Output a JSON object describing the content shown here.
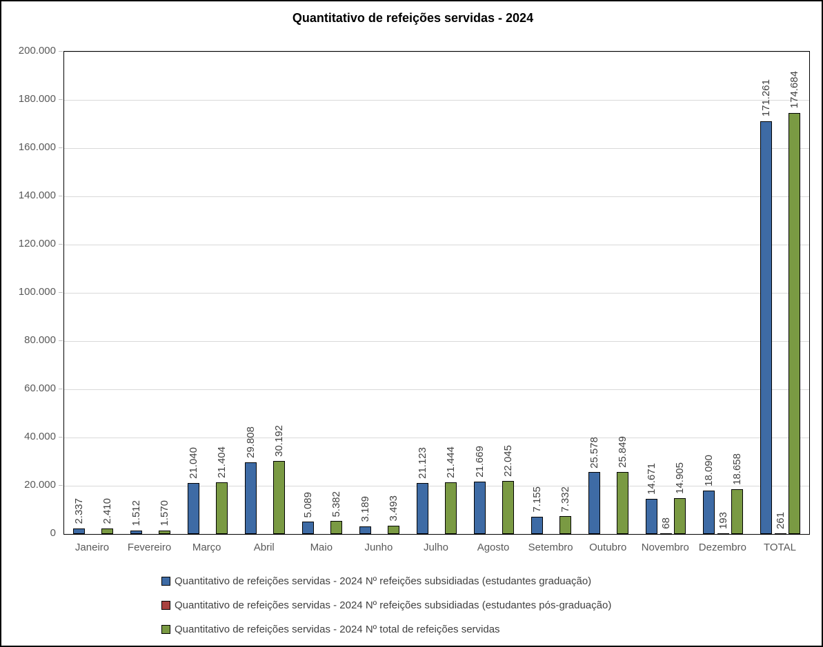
{
  "title": "Quantitativo de refeições servidas - 2024",
  "chart_data": {
    "type": "bar",
    "title": "Quantitativo de refeições servidas - 2024",
    "categories": [
      "Janeiro",
      "Fevereiro",
      "Março",
      "Abril",
      "Maio",
      "Junho",
      "Julho",
      "Agosto",
      "Setembro",
      "Outubro",
      "Novembro",
      "Dezembro",
      "TOTAL"
    ],
    "series": [
      {
        "name": "Quantitativo de refeições servidas - 2024 Nº refeições subsidiadas (estudantes graduação)",
        "color": "#3e6ba5",
        "values": [
          2337,
          1512,
          21040,
          29808,
          5089,
          3189,
          21123,
          21669,
          7155,
          25578,
          14671,
          18090,
          171261
        ],
        "labels": [
          "2.337",
          "1.512",
          "21.040",
          "29.808",
          "5.089",
          "3.189",
          "21.123",
          "21.669",
          "7.155",
          "25.578",
          "14.671",
          "18.090",
          "171.261"
        ]
      },
      {
        "name": "Quantitativo de refeições servidas - 2024 Nº refeições subsidiadas (estudantes pós-graduação)",
        "color": "#a8423f",
        "values": [
          0,
          0,
          0,
          0,
          0,
          0,
          0,
          0,
          0,
          0,
          68,
          193,
          261
        ],
        "labels": [
          "",
          "",
          "",
          "",
          "",
          "",
          "",
          "",
          "",
          "",
          "68",
          "193",
          "261"
        ]
      },
      {
        "name": "Quantitativo de refeições servidas - 2024 Nº total de refeições servidas",
        "color": "#7a9a43",
        "values": [
          2410,
          1570,
          21404,
          30192,
          5382,
          3493,
          21444,
          22045,
          7332,
          25849,
          14905,
          18658,
          174684
        ],
        "labels": [
          "2.410",
          "1.570",
          "21.404",
          "30.192",
          "5.382",
          "3.493",
          "21.444",
          "22.045",
          "7.332",
          "25.849",
          "14.905",
          "18.658",
          "174.684"
        ]
      }
    ],
    "ylim": [
      0,
      200000
    ],
    "ytick_step": 20000,
    "ytick_labels": [
      "0",
      "20.000",
      "40.000",
      "60.000",
      "80.000",
      "100.000",
      "120.000",
      "140.000",
      "160.000",
      "180.000",
      "200.000"
    ],
    "grid": true,
    "legend_position": "bottom-left",
    "bar_border_color": "#000000",
    "gridline_color": "#d9d9d9"
  }
}
